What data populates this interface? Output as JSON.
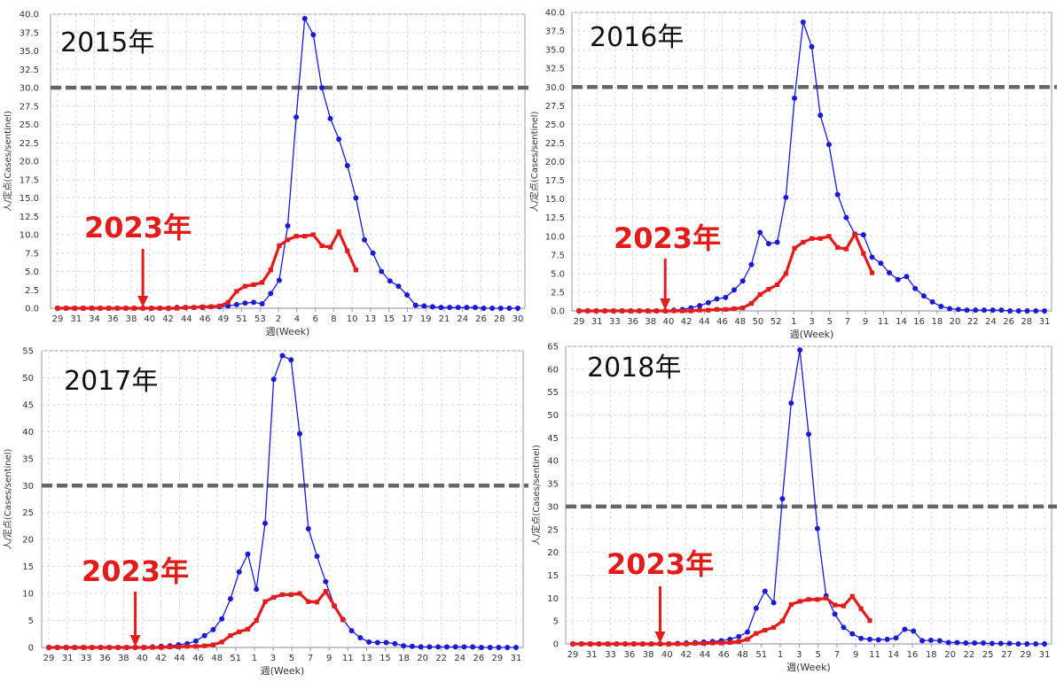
{
  "colors": {
    "main_series": "#1a1ad6",
    "series_2023": "#e31b1b",
    "threshold": "#666666",
    "grid": "#d9d9d9",
    "axis": "#9a9a9a",
    "baseline": "#8a8aa8"
  },
  "chart_data": [
    {
      "type": "line",
      "title": "2015年",
      "xlabel": "週(Week)",
      "ylabel": "人/定点(Cases/sentinel)",
      "ylim": [
        0,
        40
      ],
      "yticks": [
        0,
        2.5,
        5,
        7.5,
        10,
        12.5,
        15,
        17.5,
        20,
        22.5,
        25,
        27.5,
        30,
        32.5,
        35,
        37.5,
        40
      ],
      "ytick_labels": [
        "0.0",
        "2.5",
        "5.0",
        "7.5",
        "10.0",
        "12.5",
        "15.0",
        "17.5",
        "20.0",
        "22.5",
        "25.0",
        "27.5",
        "30.0",
        "32.5",
        "35.0",
        "37.5",
        "40.0"
      ],
      "x_categories": [
        "29",
        "30",
        "31",
        "32",
        "33",
        "34",
        "35",
        "36",
        "37",
        "38",
        "39",
        "40",
        "41",
        "42",
        "43",
        "44",
        "45",
        "46",
        "47",
        "48",
        "49",
        "50",
        "51",
        "52",
        "53",
        "1",
        "2",
        "3",
        "4",
        "5",
        "6",
        "7",
        "8",
        "9",
        "10",
        "11",
        "12",
        "13",
        "14",
        "15",
        "16",
        "17",
        "18",
        "19",
        "20",
        "21",
        "22",
        "23",
        "24",
        "25",
        "26",
        "27",
        "28",
        "29",
        "30"
      ],
      "x_tick_labels": [
        "29",
        "31",
        "34",
        "36",
        "38",
        "40",
        "42",
        "44",
        "46",
        "49",
        "51",
        "53",
        "2",
        "4",
        "6",
        "8",
        "10",
        "13",
        "15",
        "17",
        "19",
        "21",
        "24",
        "26",
        "28",
        "30"
      ],
      "threshold": 30,
      "annotation": {
        "label": "2023年",
        "arrow_week": "39"
      },
      "grid": true,
      "series": [
        {
          "values": [
            0,
            0,
            0,
            0,
            0,
            0,
            0,
            0,
            0,
            0,
            0,
            0,
            0,
            0,
            0.1,
            0.1,
            0.1,
            0.1,
            0.2,
            0.2,
            0.3,
            0.5,
            0.7,
            0.8,
            0.6,
            2,
            3.8,
            11.2,
            26,
            39.4,
            37.2,
            30,
            25.8,
            23,
            19.4,
            15,
            9.3,
            7.5,
            5,
            3.7,
            3,
            1.8,
            0.4,
            0.3,
            0.2,
            0.1,
            0.1,
            0.1,
            0.1,
            0.1,
            0,
            0,
            0,
            0,
            0
          ]
        },
        {
          "values": [
            0,
            0,
            0,
            0,
            0,
            0,
            0,
            0,
            0,
            0,
            0,
            0,
            0,
            0,
            0,
            0.1,
            0.1,
            0.2,
            0.2,
            0.3,
            0.8,
            2.3,
            3,
            3.2,
            3.5,
            5.2,
            8.5,
            9.3,
            9.8,
            9.8,
            10,
            8.5,
            8.3,
            10.4,
            7.8,
            5.2
          ]
        }
      ]
    },
    {
      "type": "line",
      "title": "2016年",
      "xlabel": "週(Week)",
      "ylabel": "人/定点(Cases/sentinel)",
      "ylim": [
        0,
        40
      ],
      "yticks": [
        0,
        2.5,
        5,
        7.5,
        10,
        12.5,
        15,
        17.5,
        20,
        22.5,
        25,
        27.5,
        30,
        32.5,
        35,
        37.5,
        40
      ],
      "ytick_labels": [
        "0.0",
        "2.5",
        "5.0",
        "7.5",
        "10.0",
        "12.5",
        "15.0",
        "17.5",
        "20.0",
        "22.5",
        "25.0",
        "27.5",
        "30.0",
        "32.5",
        "35.0",
        "37.5",
        "40.0"
      ],
      "x_categories": [
        "29",
        "30",
        "31",
        "32",
        "33",
        "34",
        "35",
        "36",
        "37",
        "38",
        "39",
        "40",
        "41",
        "42",
        "43",
        "44",
        "45",
        "46",
        "47",
        "48",
        "49",
        "50",
        "51",
        "52",
        "1",
        "2",
        "3",
        "4",
        "5",
        "6",
        "7",
        "8",
        "9",
        "10",
        "11",
        "12",
        "13",
        "14",
        "15",
        "16",
        "17",
        "18",
        "19",
        "20",
        "21",
        "22",
        "23",
        "24",
        "25",
        "26",
        "27",
        "28",
        "29",
        "30",
        "31"
      ],
      "x_tick_labels": [
        "29",
        "31",
        "33",
        "36",
        "38",
        "40",
        "42",
        "44",
        "46",
        "48",
        "50",
        "52",
        "1",
        "3",
        "5",
        "7",
        "9",
        "11",
        "14",
        "16",
        "18",
        "20",
        "22",
        "24",
        "26",
        "28",
        "31"
      ],
      "threshold": 30,
      "annotation": {
        "label": "2023年",
        "arrow_week": "39"
      },
      "grid": true,
      "series": [
        {
          "values": [
            0,
            0,
            0,
            0,
            0,
            0,
            0,
            0,
            0,
            0,
            0,
            0.1,
            0.2,
            0.4,
            0.7,
            1.1,
            1.6,
            1.8,
            2.8,
            4,
            6.2,
            10.5,
            9,
            9.2,
            15.2,
            28.5,
            38.7,
            35.4,
            26.2,
            22.3,
            15.6,
            12.5,
            10.3,
            10.2,
            7.2,
            6.4,
            5.1,
            4.2,
            4.6,
            3,
            2,
            1.2,
            0.6,
            0.3,
            0.2,
            0.1,
            0.1,
            0.1,
            0.1,
            0.1,
            0,
            0,
            0,
            0,
            0
          ]
        },
        {
          "values": [
            0,
            0,
            0,
            0,
            0,
            0,
            0,
            0,
            0,
            0,
            0,
            0,
            0,
            0,
            0.1,
            0.1,
            0.2,
            0.2,
            0.3,
            0.4,
            1,
            2.2,
            2.9,
            3.5,
            5,
            8.4,
            9.2,
            9.7,
            9.7,
            10,
            8.5,
            8.3,
            10.3,
            7.7,
            5.1
          ]
        }
      ]
    },
    {
      "type": "line",
      "title": "2017年",
      "xlabel": "週(Week)",
      "ylabel": "人/定点(Cases/sentinel)",
      "ylim": [
        0,
        55
      ],
      "yticks": [
        0,
        5,
        10,
        15,
        20,
        25,
        30,
        35,
        40,
        45,
        50,
        55
      ],
      "ytick_labels": [
        "0",
        "5",
        "10",
        "15",
        "20",
        "25",
        "30",
        "35",
        "40",
        "45",
        "50",
        "55"
      ],
      "x_categories": [
        "29",
        "30",
        "31",
        "32",
        "33",
        "34",
        "35",
        "36",
        "37",
        "38",
        "39",
        "40",
        "41",
        "42",
        "43",
        "44",
        "45",
        "46",
        "47",
        "48",
        "49",
        "50",
        "51",
        "52",
        "1",
        "2",
        "3",
        "4",
        "5",
        "6",
        "7",
        "8",
        "9",
        "10",
        "11",
        "12",
        "13",
        "14",
        "15",
        "16",
        "17",
        "18",
        "19",
        "20",
        "21",
        "22",
        "23",
        "24",
        "25",
        "26",
        "27",
        "28",
        "29",
        "30",
        "31"
      ],
      "x_tick_labels": [
        "29",
        "31",
        "33",
        "36",
        "38",
        "40",
        "42",
        "44",
        "46",
        "48",
        "51",
        "1",
        "3",
        "5",
        "7",
        "9",
        "11",
        "13",
        "15",
        "18",
        "20",
        "22",
        "24",
        "26",
        "29",
        "31"
      ],
      "threshold": 30,
      "annotation": {
        "label": "2023年",
        "arrow_week": "39"
      },
      "grid": true,
      "series": [
        {
          "values": [
            0,
            0,
            0,
            0,
            0,
            0,
            0,
            0,
            0,
            0,
            0,
            0,
            0.1,
            0.2,
            0.3,
            0.5,
            0.7,
            1.2,
            2.2,
            3.3,
            5.3,
            9,
            14,
            17.3,
            10.8,
            23,
            49.7,
            54.1,
            53.3,
            39.6,
            22,
            16.9,
            12.2,
            7.7,
            5.2,
            3.1,
            1.8,
            1,
            0.9,
            0.9,
            0.7,
            0.3,
            0.2,
            0.1,
            0.1,
            0.1,
            0.1,
            0.1,
            0.1,
            0.1,
            0,
            0,
            0,
            0,
            0
          ]
        },
        {
          "values": [
            0,
            0,
            0,
            0,
            0,
            0,
            0,
            0,
            0,
            0,
            0,
            0,
            0,
            0,
            0.1,
            0.1,
            0.2,
            0.2,
            0.3,
            0.5,
            1,
            2.2,
            2.9,
            3.4,
            5,
            8.5,
            9.3,
            9.8,
            9.8,
            10,
            8.5,
            8.4,
            10.4,
            7.7,
            5.1
          ]
        }
      ]
    },
    {
      "type": "line",
      "title": "2018年",
      "xlabel": "週(Week)",
      "ylabel": "人/定点(Cases/sentinel)",
      "ylim": [
        0,
        65
      ],
      "yticks": [
        0,
        5,
        10,
        15,
        20,
        25,
        30,
        35,
        40,
        45,
        50,
        55,
        60,
        65
      ],
      "ytick_labels": [
        "0",
        "5",
        "10",
        "15",
        "20",
        "25",
        "30",
        "35",
        "40",
        "45",
        "50",
        "55",
        "60",
        "65"
      ],
      "x_categories": [
        "29",
        "30",
        "31",
        "32",
        "33",
        "34",
        "35",
        "36",
        "37",
        "38",
        "39",
        "40",
        "41",
        "42",
        "43",
        "44",
        "45",
        "46",
        "47",
        "48",
        "49",
        "50",
        "51",
        "52",
        "1",
        "2",
        "3",
        "4",
        "5",
        "6",
        "7",
        "8",
        "9",
        "10",
        "11",
        "12",
        "13",
        "14",
        "15",
        "16",
        "17",
        "18",
        "19",
        "20",
        "21",
        "22",
        "23",
        "24",
        "25",
        "26",
        "27",
        "28",
        "29",
        "30",
        "31"
      ],
      "x_tick_labels": [
        "29",
        "31",
        "33",
        "36",
        "38",
        "40",
        "42",
        "44",
        "46",
        "48",
        "51",
        "1",
        "3",
        "5",
        "7",
        "9",
        "11",
        "14",
        "16",
        "18",
        "20",
        "22",
        "25",
        "27",
        "29",
        "31"
      ],
      "threshold": 30,
      "annotation": {
        "label": "2023年",
        "arrow_week": "39"
      },
      "grid": true,
      "series": [
        {
          "values": [
            0,
            0,
            0,
            0,
            0,
            0,
            0,
            0,
            0,
            0,
            0,
            0,
            0.1,
            0.2,
            0.3,
            0.4,
            0.5,
            0.7,
            1,
            1.6,
            2.6,
            7.8,
            11.5,
            9,
            31.7,
            52.6,
            64.2,
            45.8,
            25.2,
            10.5,
            6.5,
            3.6,
            2.2,
            1.2,
            1,
            0.9,
            1,
            1.3,
            3.2,
            2.8,
            0.7,
            0.8,
            0.7,
            0.3,
            0.3,
            0.2,
            0.2,
            0.2,
            0.1,
            0.1,
            0.1,
            0,
            0,
            0,
            0
          ]
        },
        {
          "values": [
            0,
            0,
            0,
            0,
            0,
            0,
            0,
            0,
            0,
            0,
            0,
            0,
            0,
            0,
            0.1,
            0.1,
            0.2,
            0.2,
            0.3,
            0.5,
            1,
            2.3,
            3,
            3.6,
            5,
            8.6,
            9.3,
            9.7,
            9.7,
            10,
            8.5,
            8.3,
            10.4,
            7.7,
            5.1
          ]
        }
      ]
    }
  ]
}
